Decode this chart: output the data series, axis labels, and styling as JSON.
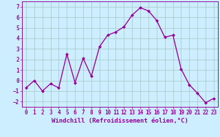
{
  "x": [
    0,
    1,
    2,
    3,
    4,
    5,
    6,
    7,
    8,
    9,
    10,
    11,
    12,
    13,
    14,
    15,
    16,
    17,
    18,
    19,
    20,
    21,
    22,
    23
  ],
  "y": [
    -0.7,
    0.0,
    -1.0,
    -0.3,
    -0.7,
    2.5,
    -0.2,
    2.1,
    0.4,
    3.2,
    4.3,
    4.6,
    5.1,
    6.2,
    6.9,
    6.6,
    5.7,
    4.1,
    4.3,
    1.1,
    -0.4,
    -1.2,
    -2.1,
    -1.7
  ],
  "line_color": "#990099",
  "marker": "D",
  "marker_size": 2.0,
  "background_color": "#cceeff",
  "grid_color": "#aacccc",
  "xlabel": "Windchill (Refroidissement éolien,°C)",
  "ylabel": "",
  "xlim": [
    -0.5,
    23.5
  ],
  "ylim": [
    -2.5,
    7.5
  ],
  "yticks": [
    -2,
    -1,
    0,
    1,
    2,
    3,
    4,
    5,
    6,
    7
  ],
  "xticks": [
    0,
    1,
    2,
    3,
    4,
    5,
    6,
    7,
    8,
    9,
    10,
    11,
    12,
    13,
    14,
    15,
    16,
    17,
    18,
    19,
    20,
    21,
    22,
    23
  ],
  "tick_label_fontsize": 5.5,
  "xlabel_fontsize": 6.5,
  "line_width": 1.0
}
